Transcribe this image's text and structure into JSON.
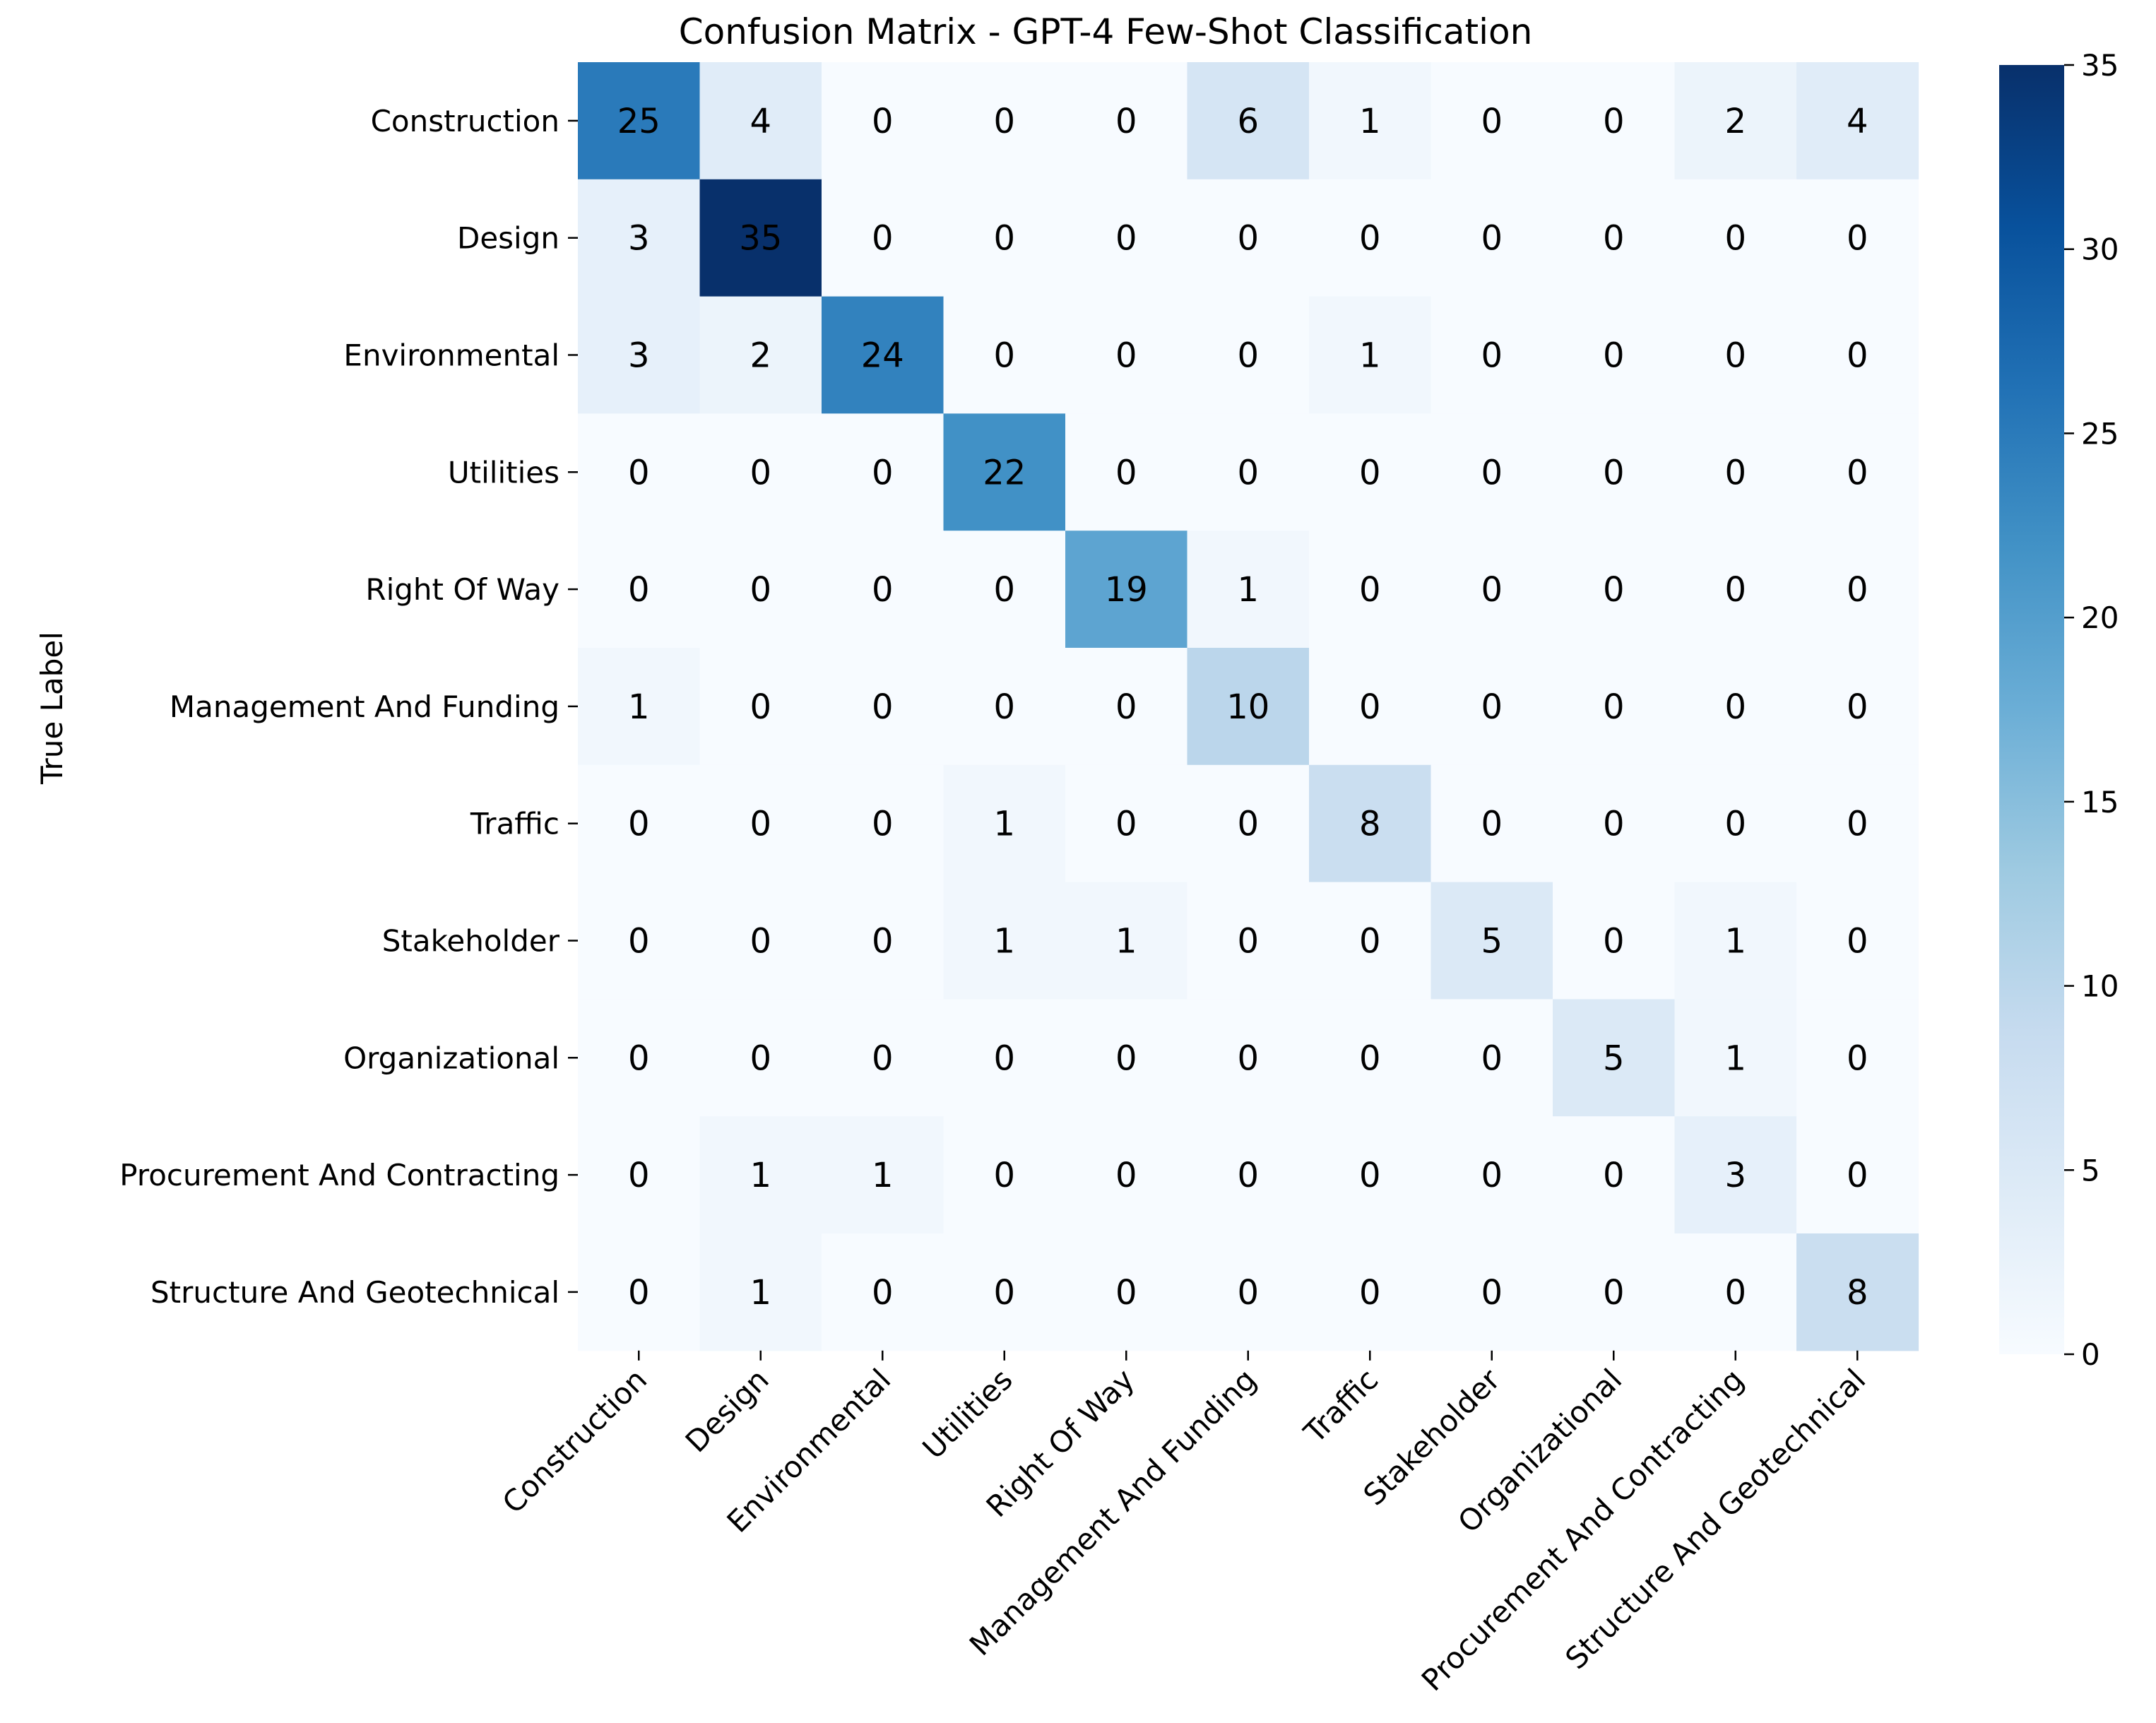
{
  "chart_data": {
    "type": "heatmap",
    "title": "Confusion Matrix - GPT-4 Few-Shot Classification",
    "ylabel": "True Label",
    "xlabel": "",
    "row_labels": [
      "Construction",
      "Design",
      "Environmental",
      "Utilities",
      "Right Of Way",
      "Management And Funding",
      "Traffic",
      "Stakeholder",
      "Organizational",
      "Procurement And Contracting",
      "Structure And Geotechnical"
    ],
    "col_labels": [
      "Construction",
      "Design",
      "Environmental",
      "Utilities",
      "Right Of Way",
      "Management And Funding",
      "Traffic",
      "Stakeholder",
      "Organizational",
      "Procurement And Contracting",
      "Structure And Geotechnical"
    ],
    "values": [
      [
        25,
        4,
        0,
        0,
        0,
        6,
        1,
        0,
        0,
        2,
        4
      ],
      [
        3,
        35,
        0,
        0,
        0,
        0,
        0,
        0,
        0,
        0,
        0
      ],
      [
        3,
        2,
        24,
        0,
        0,
        0,
        1,
        0,
        0,
        0,
        0
      ],
      [
        0,
        0,
        0,
        22,
        0,
        0,
        0,
        0,
        0,
        0,
        0
      ],
      [
        0,
        0,
        0,
        0,
        19,
        1,
        0,
        0,
        0,
        0,
        0
      ],
      [
        1,
        0,
        0,
        0,
        0,
        10,
        0,
        0,
        0,
        0,
        0
      ],
      [
        0,
        0,
        0,
        1,
        0,
        0,
        8,
        0,
        0,
        0,
        0
      ],
      [
        0,
        0,
        0,
        1,
        1,
        0,
        0,
        5,
        0,
        1,
        0
      ],
      [
        0,
        0,
        0,
        0,
        0,
        0,
        0,
        0,
        5,
        1,
        0
      ],
      [
        0,
        1,
        1,
        0,
        0,
        0,
        0,
        0,
        0,
        3,
        0
      ],
      [
        0,
        1,
        0,
        0,
        0,
        0,
        0,
        0,
        0,
        0,
        8
      ]
    ],
    "colormap": "Blues",
    "colorbar": {
      "range": [
        0,
        35
      ],
      "ticks": [
        0,
        5,
        10,
        15,
        20,
        25,
        30,
        35
      ]
    }
  }
}
